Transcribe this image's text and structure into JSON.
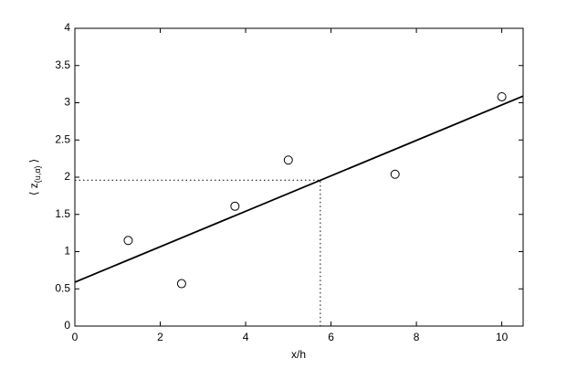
{
  "chart_data": {
    "type": "scatter",
    "xlabel": "x/h",
    "ylabel_parts": [
      "⟨ z",
      "(u,α)",
      "⟩"
    ],
    "xlim": [
      0,
      10.5
    ],
    "ylim": [
      0,
      4
    ],
    "xticks": [
      0,
      2,
      4,
      6,
      8,
      10
    ],
    "yticks": [
      0,
      0.5,
      1,
      1.5,
      2,
      2.5,
      3,
      3.5,
      4
    ],
    "grid": false,
    "series": [
      {
        "color": "#000000",
        "style": "open-circle",
        "x": [
          1.25,
          2.5,
          3.75,
          5,
          7.5,
          10
        ],
        "values": [
          1.15,
          0.57,
          1.61,
          2.23,
          2.04,
          3.08
        ]
      },
      {
        "color": "#000000",
        "style": "solid-line",
        "x": [
          0,
          10.5
        ],
        "values": [
          0.59,
          3.09
        ]
      },
      {
        "color": "#000000",
        "style": "dotted-line",
        "x": [
          0,
          5.75,
          5.75
        ],
        "values": [
          1.96,
          1.96,
          0
        ]
      }
    ]
  }
}
